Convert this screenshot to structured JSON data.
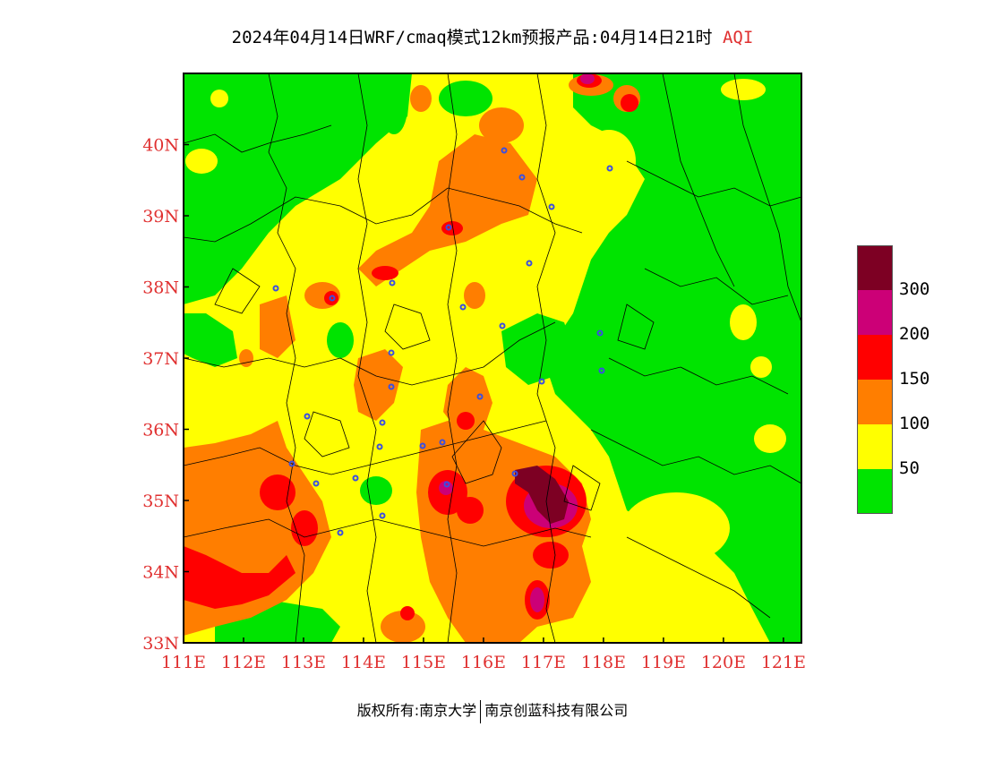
{
  "title": {
    "main": "2024年04月14日WRF/cmaq模式12km预报产品:04月14日21时",
    "variable": "AQI"
  },
  "map": {
    "lat_ticks": [
      "40N",
      "39N",
      "38N",
      "37N",
      "36N",
      "35N",
      "34N",
      "33N"
    ],
    "lon_ticks": [
      "111E",
      "112E",
      "113E",
      "114E",
      "115E",
      "116E",
      "117E",
      "118E",
      "119E",
      "120E",
      "121E"
    ],
    "lat_range": [
      33,
      41
    ],
    "lon_range": [
      111,
      121.3
    ]
  },
  "legend": {
    "bins": [
      {
        "label": "300",
        "color": "#7d0023"
      },
      {
        "label": "200",
        "color": "#cc0077"
      },
      {
        "label": "150",
        "color": "#ff0000"
      },
      {
        "label": "100",
        "color": "#ff7e00"
      },
      {
        "label": "50",
        "color": "#ffff00"
      },
      {
        "label": "",
        "color": "#00e400"
      }
    ]
  },
  "footer": {
    "left": "版权所有:南京大学",
    "right": "南京创蓝科技有限公司"
  }
}
